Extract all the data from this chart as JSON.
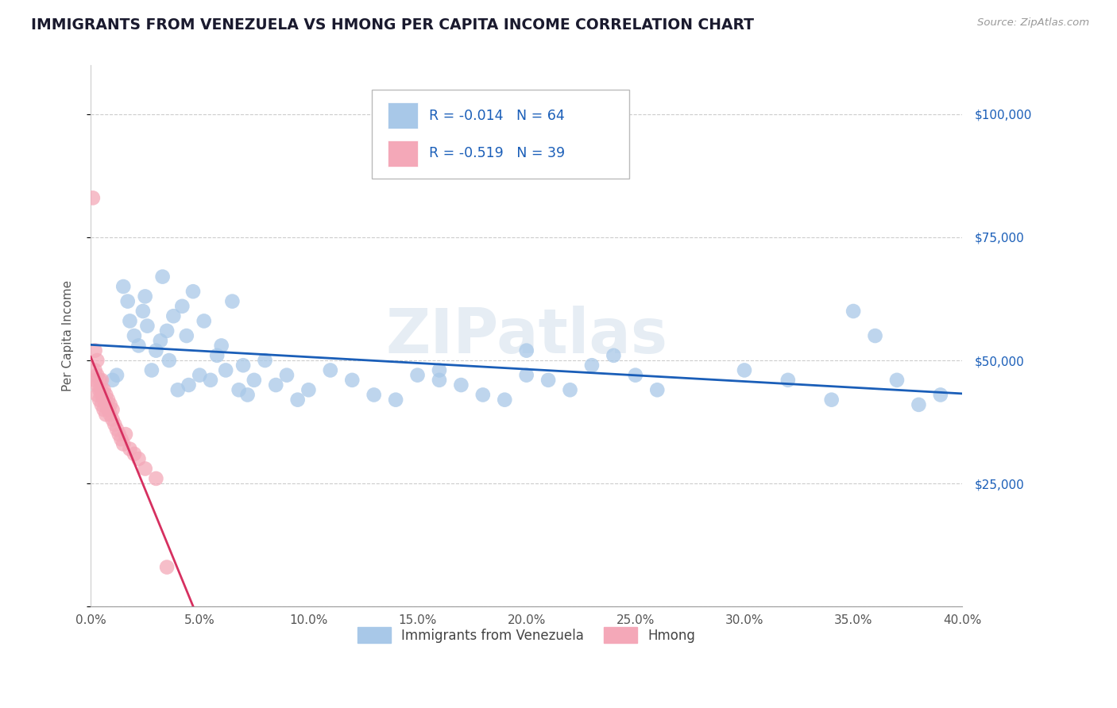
{
  "title": "IMMIGRANTS FROM VENEZUELA VS HMONG PER CAPITA INCOME CORRELATION CHART",
  "source": "Source: ZipAtlas.com",
  "ylabel": "Per Capita Income",
  "xlim": [
    0.0,
    0.4
  ],
  "ylim": [
    0,
    110000
  ],
  "yticks": [
    0,
    25000,
    50000,
    75000,
    100000
  ],
  "ytick_labels": [
    "",
    "$25,000",
    "$50,000",
    "$75,000",
    "$100,000"
  ],
  "xtick_positions": [
    0.0,
    0.05,
    0.1,
    0.15,
    0.2,
    0.25,
    0.3,
    0.35,
    0.4
  ],
  "xtick_labels": [
    "0.0%",
    "5.0%",
    "10.0%",
    "15.0%",
    "20.0%",
    "25.0%",
    "30.0%",
    "35.0%",
    "40.0%"
  ],
  "background_color": "#ffffff",
  "grid_color": "#cccccc",
  "venezuela_color": "#a8c8e8",
  "venezuela_line_color": "#1a5eb8",
  "hmong_color": "#f4a8b8",
  "hmong_line_color": "#d63060",
  "legend_r1": "R = -0.014",
  "legend_n1": "N = 64",
  "legend_r2": "R = -0.519",
  "legend_n2": "N = 39",
  "watermark": "ZIPatlas",
  "title_color": "#1a1a2e",
  "axis_color": "#555555",
  "right_tick_color": "#1a5eb8",
  "venezuela_x": [
    0.01,
    0.012,
    0.015,
    0.017,
    0.018,
    0.02,
    0.022,
    0.024,
    0.025,
    0.026,
    0.028,
    0.03,
    0.032,
    0.033,
    0.035,
    0.036,
    0.038,
    0.04,
    0.042,
    0.044,
    0.045,
    0.047,
    0.05,
    0.052,
    0.055,
    0.058,
    0.06,
    0.062,
    0.065,
    0.068,
    0.07,
    0.072,
    0.075,
    0.08,
    0.085,
    0.09,
    0.095,
    0.1,
    0.11,
    0.12,
    0.13,
    0.14,
    0.15,
    0.16,
    0.17,
    0.18,
    0.19,
    0.2,
    0.21,
    0.22,
    0.23,
    0.24,
    0.16,
    0.2,
    0.25,
    0.26,
    0.3,
    0.32,
    0.34,
    0.36,
    0.38,
    0.35,
    0.37,
    0.39
  ],
  "venezuela_y": [
    46000,
    47000,
    65000,
    62000,
    58000,
    55000,
    53000,
    60000,
    63000,
    57000,
    48000,
    52000,
    54000,
    67000,
    56000,
    50000,
    59000,
    44000,
    61000,
    55000,
    45000,
    64000,
    47000,
    58000,
    46000,
    51000,
    53000,
    48000,
    62000,
    44000,
    49000,
    43000,
    46000,
    50000,
    45000,
    47000,
    42000,
    44000,
    48000,
    46000,
    43000,
    42000,
    47000,
    48000,
    45000,
    43000,
    42000,
    47000,
    46000,
    44000,
    49000,
    51000,
    46000,
    52000,
    47000,
    44000,
    48000,
    46000,
    42000,
    55000,
    41000,
    60000,
    46000,
    43000
  ],
  "hmong_x": [
    0.001,
    0.002,
    0.002,
    0.002,
    0.003,
    0.003,
    0.003,
    0.003,
    0.004,
    0.004,
    0.004,
    0.005,
    0.005,
    0.005,
    0.005,
    0.006,
    0.006,
    0.006,
    0.007,
    0.007,
    0.007,
    0.008,
    0.008,
    0.009,
    0.009,
    0.01,
    0.01,
    0.011,
    0.012,
    0.013,
    0.014,
    0.015,
    0.016,
    0.018,
    0.02,
    0.022,
    0.025,
    0.03,
    0.035
  ],
  "hmong_y": [
    83000,
    52000,
    48000,
    46000,
    50000,
    47000,
    45000,
    43000,
    46000,
    44000,
    42000,
    46000,
    44000,
    43000,
    41000,
    44000,
    42000,
    40000,
    43000,
    41000,
    39000,
    42000,
    40000,
    41000,
    39000,
    40000,
    38000,
    37000,
    36000,
    35000,
    34000,
    33000,
    35000,
    32000,
    31000,
    30000,
    28000,
    26000,
    8000
  ]
}
